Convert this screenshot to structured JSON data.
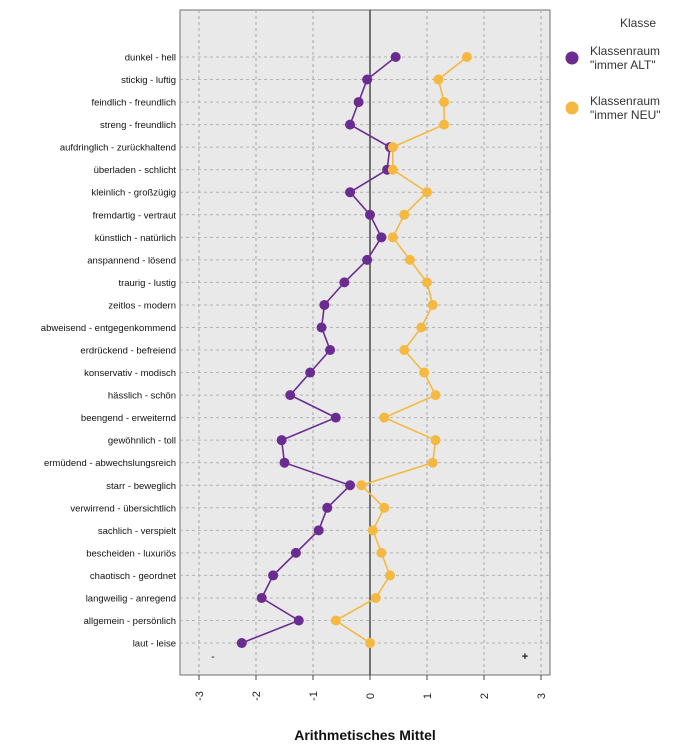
{
  "chart_data": {
    "type": "line",
    "orientation": "horizontal-profile",
    "title": "",
    "xlabel": "Arithmetisches Mittel",
    "ylabel": "",
    "xlim": [
      -3.2,
      3.2
    ],
    "xticks": [
      "-3",
      "-2",
      "-1",
      "0",
      "1",
      "2",
      "3"
    ],
    "grid": true,
    "legend_position": "right",
    "legend_title": "Klasse",
    "categories": [
      "dunkel - hell",
      "stickig - luftig",
      "feindlich - freundlich",
      "streng - freundlich",
      "aufdringlich - zurückhaltend",
      "überladen - schlicht",
      "kleinlich - großzügig",
      "fremdartig - vertraut",
      "künstlich - natürlich",
      "anspannend - lösend",
      "traurig - lustig",
      "zeitlos - modern",
      "abweisend - entgegenkommend",
      "erdrückend - befreiend",
      "konservativ - modisch",
      "hässlich - schön",
      "beengend - erweiternd",
      "gewöhnlich - toll",
      "ermüdend - abwechslungsreich",
      "starr - beweglich",
      "verwirrend - übersichtlich",
      "sachlich - verspielt",
      "bescheiden - luxuriös",
      "chaotisch - geordnet",
      "langweilig - anregend",
      "allgemein - persönlich",
      "laut - leise"
    ],
    "series": [
      {
        "name": "Klassenraum \"immer ALT\"",
        "color": "#6a2c91",
        "values": [
          0.45,
          -0.05,
          -0.2,
          -0.35,
          0.35,
          0.3,
          -0.35,
          0.0,
          0.2,
          -0.05,
          -0.45,
          -0.8,
          -0.85,
          -0.7,
          -1.05,
          -1.4,
          -0.6,
          -1.55,
          -1.5,
          -0.35,
          -0.75,
          -0.9,
          -1.3,
          -1.7,
          -1.9,
          -1.25,
          -2.25
        ]
      },
      {
        "name": "Klassenraum \"immer NEU\"",
        "color": "#f5b942",
        "values": [
          1.7,
          1.2,
          1.3,
          1.3,
          0.4,
          0.4,
          1.0,
          0.6,
          0.4,
          0.7,
          1.0,
          1.1,
          0.9,
          0.6,
          0.95,
          1.15,
          0.25,
          1.15,
          1.1,
          -0.15,
          0.25,
          0.05,
          0.2,
          0.35,
          0.1,
          -0.6,
          0.0
        ]
      }
    ],
    "annotations": [
      "-",
      "+"
    ]
  }
}
